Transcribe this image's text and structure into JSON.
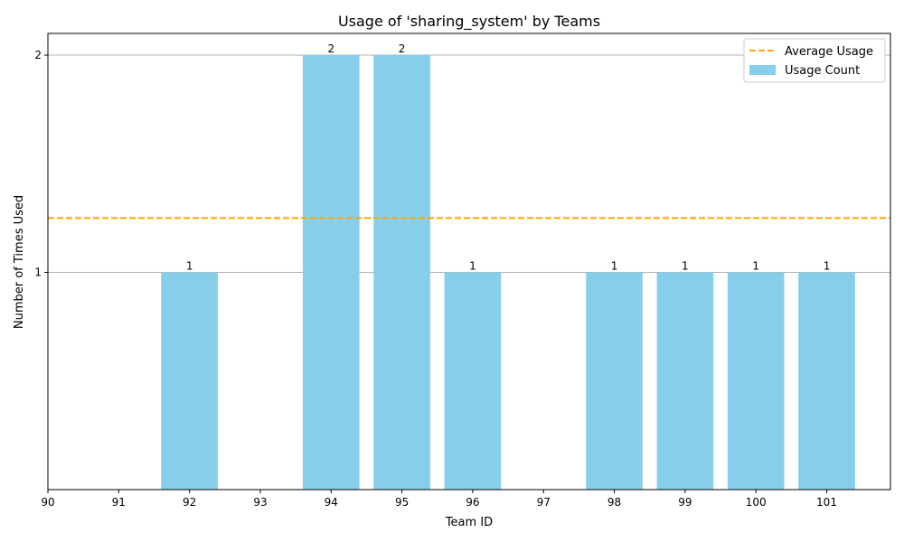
{
  "chart_data": {
    "type": "bar",
    "title": "Usage of 'sharing_system' by Teams",
    "xlabel": "Team ID",
    "ylabel": "Number of Times Used",
    "x_ticks": [
      90,
      91,
      92,
      93,
      94,
      95,
      96,
      97,
      98,
      99,
      100,
      101
    ],
    "xlim": [
      90,
      101.9
    ],
    "y_ticks": [
      1,
      2
    ],
    "ylim": [
      0,
      2.1
    ],
    "grid": "y",
    "bars": [
      {
        "x": 92,
        "value": 1,
        "label": "1"
      },
      {
        "x": 94,
        "value": 2,
        "label": "2"
      },
      {
        "x": 95,
        "value": 2,
        "label": "2"
      },
      {
        "x": 96,
        "value": 1,
        "label": "1"
      },
      {
        "x": 98,
        "value": 1,
        "label": "1"
      },
      {
        "x": 99,
        "value": 1,
        "label": "1"
      },
      {
        "x": 100,
        "value": 1,
        "label": "1"
      },
      {
        "x": 101,
        "value": 1,
        "label": "1"
      }
    ],
    "bar_width": 0.8,
    "average": 1.25,
    "legend": {
      "placement": "top-right",
      "entries": [
        {
          "label": "Average Usage",
          "style": "dashed-line"
        },
        {
          "label": "Usage Count",
          "style": "patch"
        }
      ]
    },
    "colors": {
      "bar": "#87ceeb",
      "average_line": "#ffa500",
      "grid": "#b0b0b0"
    }
  }
}
